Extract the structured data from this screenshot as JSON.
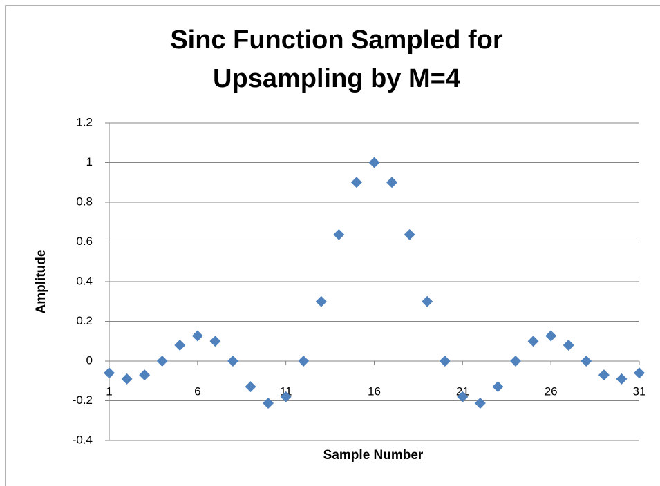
{
  "chart_data": {
    "type": "scatter",
    "title": "Sinc Function Sampled for Upsampling by M=4",
    "x_label": "Sample Number",
    "y_label": "Amplitude",
    "x": [
      1,
      2,
      3,
      4,
      5,
      6,
      7,
      8,
      9,
      10,
      11,
      12,
      13,
      14,
      15,
      16,
      17,
      18,
      19,
      20,
      21,
      22,
      23,
      24,
      25,
      26,
      27,
      28,
      29,
      30,
      31
    ],
    "series": [
      {
        "name": "Amplitude",
        "color": "#4f81bd",
        "values": [
          -0.06,
          -0.09,
          -0.07,
          0,
          0.08,
          0.127,
          0.1,
          0,
          -0.129,
          -0.212,
          -0.18,
          0,
          0.3,
          0.637,
          0.9,
          1,
          0.9,
          0.637,
          0.3,
          0,
          -0.18,
          -0.212,
          -0.129,
          0,
          0.1,
          0.127,
          0.08,
          0,
          -0.07,
          -0.09,
          -0.06
        ]
      }
    ],
    "xlim": [
      1,
      31
    ],
    "xticks": [
      1,
      6,
      11,
      16,
      21,
      26,
      31
    ],
    "ylim": [
      -0.4,
      1.2
    ],
    "yticks": [
      -0.4,
      -0.2,
      0,
      0.2,
      0.4,
      0.6,
      0.8,
      1,
      1.2
    ],
    "grid": true
  }
}
